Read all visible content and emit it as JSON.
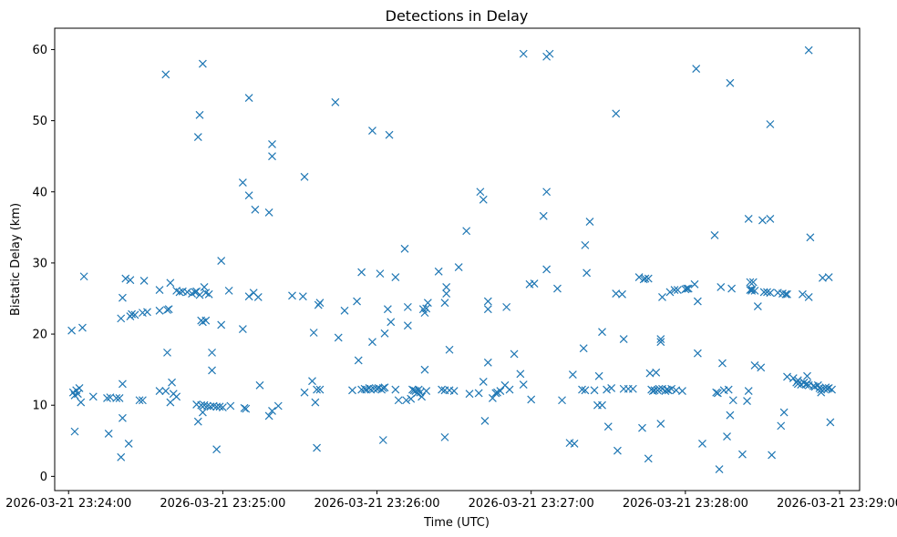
{
  "chart_data": {
    "type": "scatter",
    "title": "Detections in Delay",
    "xlabel": "Time (UTC)",
    "ylabel": "Bistatic Delay (km)",
    "marker": "x",
    "color": "#1f77b4",
    "xlim": [
      -0.09,
      5.13
    ],
    "ylim": [
      -2,
      63
    ],
    "xticks": [
      {
        "value": 0,
        "label": "2026-03-21 23:24:00"
      },
      {
        "value": 1,
        "label": "2026-03-21 23:25:00"
      },
      {
        "value": 2,
        "label": "2026-03-21 23:26:00"
      },
      {
        "value": 3,
        "label": "2026-03-21 23:27:00"
      },
      {
        "value": 4,
        "label": "2026-03-21 23:28:00"
      },
      {
        "value": 5,
        "label": "2026-03-21 23:29:00"
      }
    ],
    "yticks": [
      {
        "value": 0,
        "label": "0"
      },
      {
        "value": 10,
        "label": "10"
      },
      {
        "value": 20,
        "label": "20"
      },
      {
        "value": 30,
        "label": "30"
      },
      {
        "value": 40,
        "label": "40"
      },
      {
        "value": 50,
        "label": "50"
      },
      {
        "value": 60,
        "label": "60"
      }
    ],
    "x_unit": "minutes after 2026-03-21 23:24:00",
    "points": [
      [
        0.03,
        11.8
      ],
      [
        0.04,
        11.4
      ],
      [
        0.05,
        12.1
      ],
      [
        0.06,
        11.6
      ],
      [
        0.07,
        12.4
      ],
      [
        0.08,
        10.4
      ],
      [
        0.02,
        20.5
      ],
      [
        0.09,
        20.9
      ],
      [
        0.1,
        28.1
      ],
      [
        0.04,
        6.3
      ],
      [
        0.16,
        11.2
      ],
      [
        0.25,
        11.0
      ],
      [
        0.27,
        11.1
      ],
      [
        0.26,
        6.0
      ],
      [
        0.31,
        11.0
      ],
      [
        0.33,
        11.0
      ],
      [
        0.34,
        22.2
      ],
      [
        0.35,
        25.1
      ],
      [
        0.35,
        13.0
      ],
      [
        0.35,
        8.2
      ],
      [
        0.34,
        2.7
      ],
      [
        0.37,
        27.8
      ],
      [
        0.39,
        4.6
      ],
      [
        0.4,
        27.6
      ],
      [
        0.4,
        22.5
      ],
      [
        0.41,
        22.8
      ],
      [
        0.43,
        22.7
      ],
      [
        0.46,
        10.7
      ],
      [
        0.48,
        10.7
      ],
      [
        0.48,
        23.0
      ],
      [
        0.49,
        27.5
      ],
      [
        0.51,
        23.1
      ],
      [
        0.59,
        26.2
      ],
      [
        0.59,
        12.0
      ],
      [
        0.59,
        23.3
      ],
      [
        0.63,
        12.0
      ],
      [
        0.64,
        23.4
      ],
      [
        0.64,
        17.4
      ],
      [
        0.65,
        23.5
      ],
      [
        0.66,
        27.2
      ],
      [
        0.66,
        10.4
      ],
      [
        0.67,
        13.2
      ],
      [
        0.68,
        11.6
      ],
      [
        0.7,
        26.1
      ],
      [
        0.7,
        11.2
      ],
      [
        0.72,
        25.9
      ],
      [
        0.74,
        26.0
      ],
      [
        0.77,
        25.9
      ],
      [
        0.8,
        25.7
      ],
      [
        0.82,
        25.9
      ],
      [
        0.83,
        26.0
      ],
      [
        0.85,
        25.5
      ],
      [
        0.86,
        21.9
      ],
      [
        0.87,
        21.7
      ],
      [
        0.89,
        21.9
      ],
      [
        0.88,
        26.6
      ],
      [
        0.89,
        25.8
      ],
      [
        0.91,
        25.6
      ],
      [
        0.83,
        10.1
      ],
      [
        0.84,
        7.7
      ],
      [
        0.86,
        10.0
      ],
      [
        0.88,
        10.0
      ],
      [
        0.9,
        9.9
      ],
      [
        0.92,
        9.8
      ],
      [
        0.94,
        9.9
      ],
      [
        0.96,
        9.8
      ],
      [
        0.98,
        9.8
      ],
      [
        1.0,
        9.7
      ],
      [
        0.87,
        9.0
      ],
      [
        0.93,
        17.4
      ],
      [
        0.93,
        14.9
      ],
      [
        0.96,
        3.8
      ],
      [
        0.99,
        30.3
      ],
      [
        0.99,
        21.3
      ],
      [
        1.04,
        26.1
      ],
      [
        1.05,
        9.9
      ],
      [
        1.13,
        20.7
      ],
      [
        1.14,
        9.6
      ],
      [
        1.15,
        9.5
      ],
      [
        1.17,
        25.3
      ],
      [
        1.2,
        25.8
      ],
      [
        1.23,
        25.2
      ],
      [
        1.24,
        12.8
      ],
      [
        1.13,
        41.3
      ],
      [
        1.17,
        39.5
      ],
      [
        1.21,
        37.5
      ],
      [
        1.17,
        53.2
      ],
      [
        1.3,
        37.1
      ],
      [
        1.3,
        8.5
      ],
      [
        1.32,
        9.2
      ],
      [
        1.32,
        45.0
      ],
      [
        1.32,
        46.7
      ],
      [
        1.36,
        9.9
      ],
      [
        1.45,
        25.4
      ],
      [
        1.52,
        25.3
      ],
      [
        1.53,
        11.8
      ],
      [
        1.53,
        42.1
      ],
      [
        1.58,
        13.4
      ],
      [
        1.59,
        20.2
      ],
      [
        1.6,
        10.4
      ],
      [
        1.61,
        12.2
      ],
      [
        1.61,
        4.0
      ],
      [
        1.63,
        24.4
      ],
      [
        1.62,
        24.1
      ],
      [
        1.63,
        12.2
      ],
      [
        0.85,
        50.8
      ],
      [
        0.84,
        47.7
      ],
      [
        0.87,
        58.0
      ],
      [
        0.63,
        56.5
      ],
      [
        1.73,
        52.6
      ],
      [
        1.75,
        19.5
      ],
      [
        1.79,
        23.3
      ],
      [
        1.84,
        12.1
      ],
      [
        1.87,
        24.6
      ],
      [
        1.88,
        16.3
      ],
      [
        1.9,
        28.7
      ],
      [
        1.9,
        12.2
      ],
      [
        1.92,
        12.3
      ],
      [
        1.93,
        12.2
      ],
      [
        1.95,
        12.4
      ],
      [
        1.96,
        12.2
      ],
      [
        1.97,
        18.9
      ],
      [
        1.98,
        12.3
      ],
      [
        2.0,
        12.3
      ],
      [
        2.01,
        12.4
      ],
      [
        2.02,
        28.5
      ],
      [
        2.03,
        12.2
      ],
      [
        2.04,
        12.4
      ],
      [
        2.05,
        12.5
      ],
      [
        2.04,
        5.1
      ],
      [
        2.05,
        20.1
      ],
      [
        2.07,
        23.5
      ],
      [
        2.09,
        21.7
      ],
      [
        1.97,
        48.6
      ],
      [
        2.08,
        48.0
      ],
      [
        2.12,
        28.0
      ],
      [
        2.14,
        10.7
      ],
      [
        2.12,
        12.2
      ],
      [
        2.19,
        10.7
      ],
      [
        2.2,
        21.2
      ],
      [
        2.2,
        23.8
      ],
      [
        2.18,
        32.0
      ],
      [
        2.23,
        12.2
      ],
      [
        2.22,
        10.9
      ],
      [
        2.24,
        12.1
      ],
      [
        2.25,
        12.0
      ],
      [
        2.26,
        11.7
      ],
      [
        2.27,
        12.2
      ],
      [
        2.28,
        11.8
      ],
      [
        2.29,
        11.2
      ],
      [
        2.3,
        23.5
      ],
      [
        2.31,
        15.0
      ],
      [
        2.31,
        23.0
      ],
      [
        2.32,
        12.0
      ],
      [
        2.32,
        23.6
      ],
      [
        2.33,
        24.4
      ],
      [
        2.4,
        28.8
      ],
      [
        2.42,
        12.2
      ],
      [
        2.44,
        24.4
      ],
      [
        2.44,
        12.1
      ],
      [
        2.44,
        5.5
      ],
      [
        2.45,
        25.7
      ],
      [
        2.45,
        26.6
      ],
      [
        2.47,
        12.1
      ],
      [
        2.5,
        12.0
      ],
      [
        2.47,
        17.8
      ],
      [
        2.53,
        29.4
      ],
      [
        2.6,
        11.6
      ],
      [
        2.58,
        34.5
      ],
      [
        2.66,
        11.7
      ],
      [
        2.67,
        40.0
      ],
      [
        2.69,
        13.3
      ],
      [
        2.69,
        38.9
      ],
      [
        2.7,
        7.8
      ],
      [
        2.72,
        16.0
      ],
      [
        2.72,
        23.5
      ],
      [
        2.72,
        24.6
      ],
      [
        2.75,
        11.0
      ],
      [
        2.77,
        11.7
      ],
      [
        2.78,
        11.8
      ],
      [
        2.8,
        12.0
      ],
      [
        2.83,
        12.8
      ],
      [
        2.84,
        23.8
      ],
      [
        2.86,
        12.2
      ],
      [
        2.89,
        17.2
      ],
      [
        2.93,
        14.4
      ],
      [
        2.95,
        12.9
      ],
      [
        2.95,
        59.4
      ],
      [
        2.99,
        27.0
      ],
      [
        3.02,
        27.1
      ],
      [
        3.0,
        10.8
      ],
      [
        3.08,
        36.6
      ],
      [
        3.1,
        40.0
      ],
      [
        3.1,
        29.1
      ],
      [
        3.1,
        59.0
      ],
      [
        3.12,
        59.4
      ],
      [
        3.17,
        26.4
      ],
      [
        3.2,
        10.7
      ],
      [
        3.25,
        4.7
      ],
      [
        3.27,
        14.3
      ],
      [
        3.28,
        4.6
      ],
      [
        3.33,
        12.2
      ],
      [
        3.35,
        12.1
      ],
      [
        3.34,
        18.0
      ],
      [
        3.35,
        32.5
      ],
      [
        3.36,
        28.6
      ],
      [
        3.38,
        35.8
      ],
      [
        3.41,
        12.1
      ],
      [
        3.43,
        10.0
      ],
      [
        3.44,
        14.1
      ],
      [
        3.46,
        10.0
      ],
      [
        3.46,
        20.3
      ],
      [
        3.49,
        12.2
      ],
      [
        3.5,
        7.0
      ],
      [
        3.52,
        12.4
      ],
      [
        3.55,
        25.7
      ],
      [
        3.56,
        3.6
      ],
      [
        3.55,
        51.0
      ],
      [
        3.59,
        25.6
      ],
      [
        3.6,
        19.3
      ],
      [
        3.6,
        12.3
      ],
      [
        3.63,
        12.3
      ],
      [
        3.66,
        12.3
      ],
      [
        3.7,
        28.0
      ],
      [
        3.73,
        27.7
      ],
      [
        3.74,
        27.8
      ],
      [
        3.76,
        27.8
      ],
      [
        3.72,
        6.8
      ],
      [
        3.76,
        2.5
      ],
      [
        3.77,
        14.5
      ],
      [
        3.78,
        12.2
      ],
      [
        3.79,
        12.0
      ],
      [
        3.8,
        12.1
      ],
      [
        3.81,
        14.6
      ],
      [
        3.82,
        12.1
      ],
      [
        3.83,
        12.3
      ],
      [
        3.84,
        18.9
      ],
      [
        3.84,
        19.3
      ],
      [
        3.84,
        7.4
      ],
      [
        3.85,
        12.3
      ],
      [
        3.85,
        25.2
      ],
      [
        3.87,
        12.0
      ],
      [
        3.88,
        12.2
      ],
      [
        3.89,
        12.1
      ],
      [
        3.9,
        25.9
      ],
      [
        3.91,
        12.3
      ],
      [
        3.93,
        26.2
      ],
      [
        3.94,
        12.1
      ],
      [
        3.95,
        26.2
      ],
      [
        3.98,
        12.0
      ],
      [
        4.0,
        26.3
      ],
      [
        4.01,
        26.4
      ],
      [
        4.02,
        26.4
      ],
      [
        4.06,
        27.0
      ],
      [
        4.08,
        24.6
      ],
      [
        4.08,
        17.3
      ],
      [
        4.11,
        4.6
      ],
      [
        4.07,
        57.3
      ],
      [
        4.19,
        33.9
      ],
      [
        4.2,
        11.8
      ],
      [
        4.21,
        11.7
      ],
      [
        4.22,
        1.0
      ],
      [
        4.23,
        26.6
      ],
      [
        4.24,
        15.9
      ],
      [
        4.25,
        12.1
      ],
      [
        4.28,
        12.2
      ],
      [
        4.27,
        5.6
      ],
      [
        4.29,
        8.6
      ],
      [
        4.31,
        10.7
      ],
      [
        4.3,
        26.4
      ],
      [
        4.29,
        55.3
      ],
      [
        4.37,
        3.1
      ],
      [
        4.4,
        10.6
      ],
      [
        4.41,
        12.0
      ],
      [
        4.41,
        36.2
      ],
      [
        4.42,
        27.3
      ],
      [
        4.42,
        26.2
      ],
      [
        4.43,
        26.1
      ],
      [
        4.43,
        26.3
      ],
      [
        4.44,
        27.3
      ],
      [
        4.45,
        26.1
      ],
      [
        4.45,
        15.6
      ],
      [
        4.47,
        23.9
      ],
      [
        4.49,
        15.3
      ],
      [
        4.5,
        36.0
      ],
      [
        4.51,
        25.9
      ],
      [
        4.53,
        25.9
      ],
      [
        4.55,
        36.2
      ],
      [
        4.55,
        25.8
      ],
      [
        4.56,
        3.0
      ],
      [
        4.55,
        49.5
      ],
      [
        4.6,
        25.8
      ],
      [
        4.62,
        7.1
      ],
      [
        4.63,
        25.7
      ],
      [
        4.65,
        25.6
      ],
      [
        4.64,
        9.0
      ],
      [
        4.66,
        25.6
      ],
      [
        4.66,
        14.0
      ],
      [
        4.7,
        13.8
      ],
      [
        4.72,
        13.2
      ],
      [
        4.73,
        13.0
      ],
      [
        4.73,
        13.5
      ],
      [
        4.75,
        12.9
      ],
      [
        4.76,
        25.6
      ],
      [
        4.77,
        13.2
      ],
      [
        4.78,
        12.9
      ],
      [
        4.79,
        13.0
      ],
      [
        4.79,
        14.1
      ],
      [
        4.8,
        12.8
      ],
      [
        4.8,
        25.2
      ],
      [
        4.81,
        33.6
      ],
      [
        4.83,
        12.7
      ],
      [
        4.84,
        12.6
      ],
      [
        4.86,
        12.8
      ],
      [
        4.87,
        12.4
      ],
      [
        4.88,
        12.2
      ],
      [
        4.88,
        11.8
      ],
      [
        4.89,
        27.9
      ],
      [
        4.9,
        12.3
      ],
      [
        4.91,
        12.5
      ],
      [
        4.92,
        12.3
      ],
      [
        4.93,
        12.4
      ],
      [
        4.93,
        28.0
      ],
      [
        4.94,
        7.6
      ],
      [
        4.95,
        12.2
      ],
      [
        4.8,
        59.9
      ]
    ]
  }
}
